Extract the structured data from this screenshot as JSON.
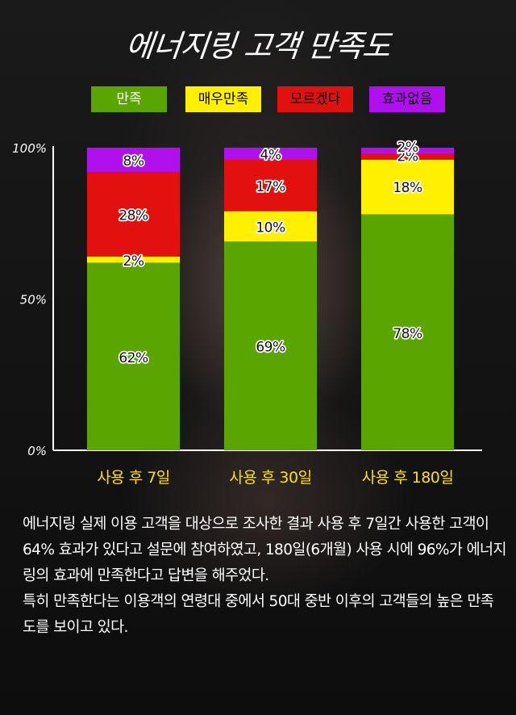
{
  "title": "에너지링 고객 만족도",
  "colors": {
    "satisfied": "#5aa500",
    "very_satisfied": "#fff000",
    "unknown": "#e31010",
    "no_effect": "#b010ee"
  },
  "chart_data": {
    "type": "bar",
    "stacked": true,
    "categories": [
      "사용 후 7일",
      "사용 후 30일",
      "사용 후 180일"
    ],
    "series": [
      {
        "name": "만족",
        "values": [
          62,
          69,
          78
        ],
        "labels": [
          "62%",
          "69%",
          "78%"
        ],
        "color": "#5aa500",
        "text_color": "#ffffff"
      },
      {
        "name": "매우만족",
        "values": [
          2,
          10,
          18
        ],
        "labels": [
          "2%",
          "10%",
          "18%"
        ],
        "color": "#fff000",
        "text_color": "#000000"
      },
      {
        "name": "모르겠다",
        "values": [
          28,
          17,
          2
        ],
        "labels": [
          "28%",
          "17%",
          "2%"
        ],
        "color": "#e31010",
        "text_color": "#000000"
      },
      {
        "name": "효과없음",
        "values": [
          8,
          4,
          2
        ],
        "labels": [
          "8%",
          "4%",
          "2%"
        ],
        "color": "#b010ee",
        "text_color": "#000000"
      }
    ],
    "yticks": [
      "0%",
      "50%",
      "100%"
    ],
    "ylim": [
      0,
      100
    ],
    "legend_position": "top",
    "grid": false
  },
  "description": [
    "에너지링 실제 이용 고객을 대상으로 조사한 결과 사용 후 7일간 사용한 고객이 64% 효과가 있다고 설문에 참여하였고, 180일(6개월) 사용 시에 96%가 에너지링의 효과에 만족한다고 답변을 해주었다.",
    "특히 만족한다는 이용객의 연령대 중에서 50대 중반 이후의 고객들의 높은 만족도를 보이고 있다."
  ]
}
